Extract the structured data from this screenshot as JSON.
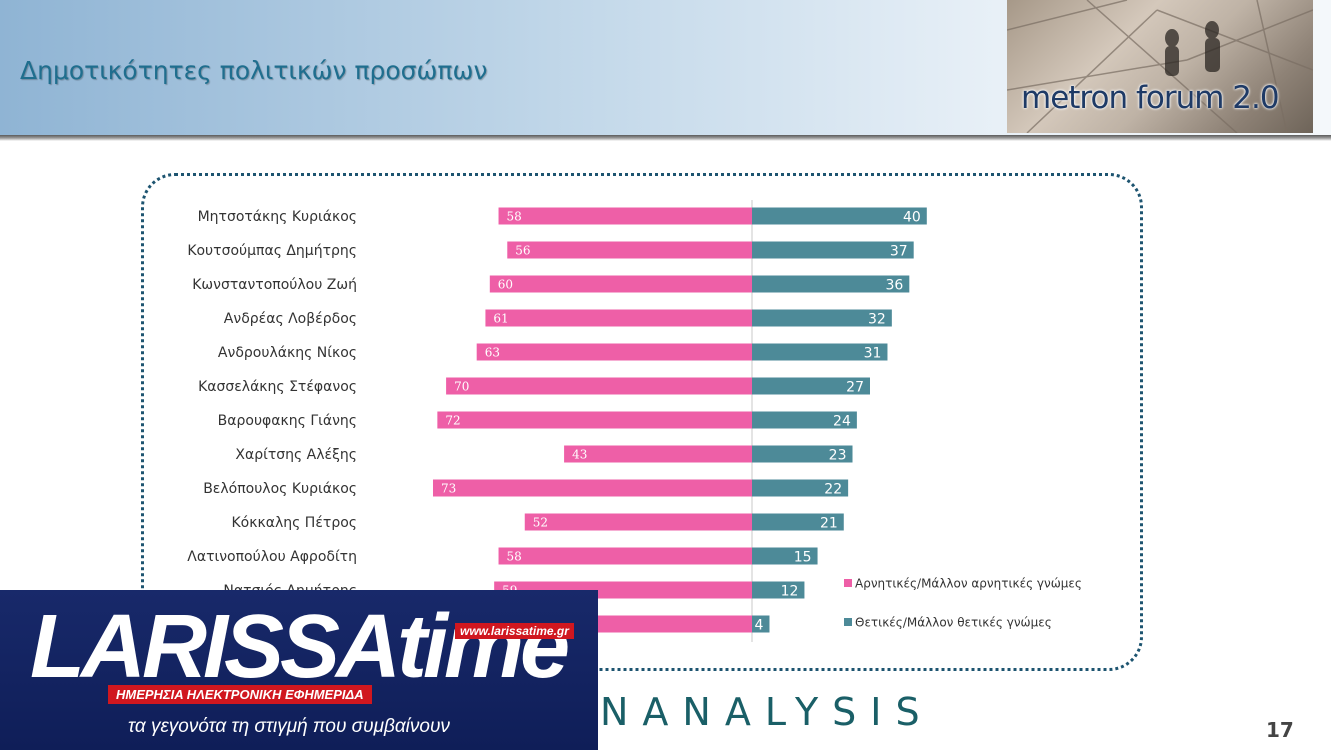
{
  "header": {
    "title": "Δημοτικότητες πολιτικών προσώπων",
    "logo_text": "metron forum 2.0"
  },
  "footer": {
    "brand": "NANALYSIS",
    "page_number": "17"
  },
  "overlay": {
    "brand": "LARISSAtime",
    "url": "www.larissatime.gr",
    "subtitle": "ΗΜΕΡΗΣΙΑ ΗΛΕΚΤΡΟΝΙΚΗ ΕΦΗΜΕΡΙΔΑ",
    "tagline": "τα γεγονότα τη στιγμή που συμβαίνουν"
  },
  "chart_data": {
    "type": "bar",
    "orientation": "horizontal-diverging",
    "categories": [
      "Μητσοτάκης Κυριάκος",
      "Κουτσούμπας Δημήτρης",
      "Κωνσταντοπούλου Ζωή",
      "Ανδρέας Λοβέρδος",
      "Ανδρουλάκης Νίκος",
      "Κασσελάκης Στέφανος",
      "Βαρουφακης Γιάνης",
      "Χαρίτσης Αλέξης",
      "Βελόπουλος Κυριάκος",
      "Κόκκαλης Πέτρος",
      "Λατινοπούλου Αφροδίτη",
      "Νατσιός Δημήτρης",
      ""
    ],
    "series": [
      {
        "name": "Αρνητικές/Μάλλον αρνητικές γνώμες",
        "color": "#ee5fa7",
        "direction": "left",
        "values": [
          58,
          56,
          60,
          61,
          63,
          70,
          72,
          43,
          73,
          52,
          58,
          59,
          70
        ]
      },
      {
        "name": "Θετικές/Μάλλον θετικές γνώμες",
        "color": "#4d8a98",
        "direction": "right",
        "values": [
          40,
          37,
          36,
          32,
          31,
          27,
          24,
          23,
          22,
          21,
          15,
          12,
          4
        ]
      }
    ],
    "legend_position": "bottom-right",
    "grid": false
  }
}
